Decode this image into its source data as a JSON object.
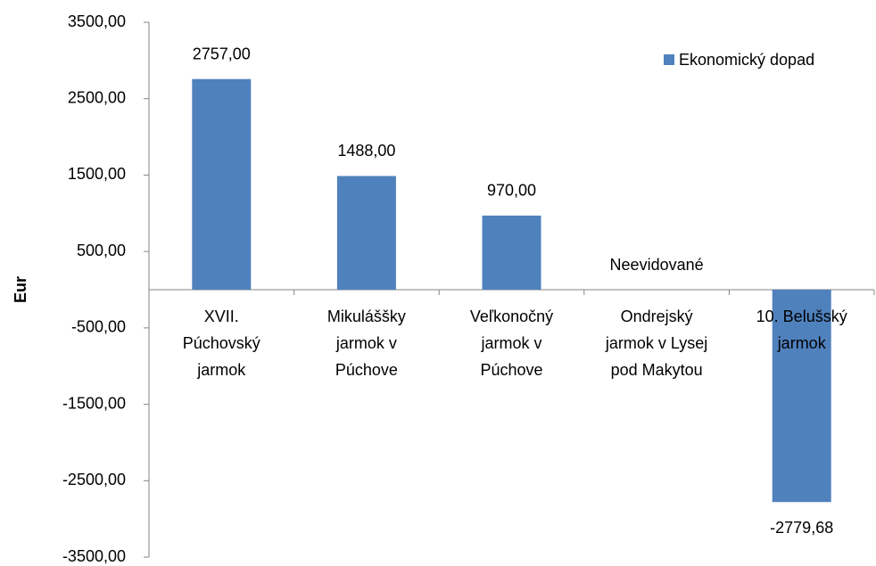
{
  "chart_data": {
    "type": "bar",
    "y_label": "Eur",
    "categories": [
      "XVII.\nPúchovský\njarmok",
      "Mikuláššky\njarmok v\nPúchove",
      "Veľkonočný\njarmok v\nPúchove",
      "Ondrejský\njarmok v Lysej\npod Makytou",
      "10. Belušský\njarmok"
    ],
    "series": [
      {
        "name": "Ekonomický dopad",
        "color": "#4f81bd",
        "values": [
          2757,
          1488,
          970,
          null,
          -2779.68
        ],
        "value_labels": [
          "2757,00",
          "1488,00",
          "970,00",
          "Neevidované",
          "-2779,68"
        ]
      }
    ],
    "ylim": [
      -3500,
      3500
    ],
    "yticks": [
      {
        "value": -3500,
        "label": "-3500,00"
      },
      {
        "value": -2500,
        "label": "-2500,00"
      },
      {
        "value": -1500,
        "label": "-1500,00"
      },
      {
        "value": -500,
        "label": "-500,00"
      },
      {
        "value": 500,
        "label": "500,00"
      },
      {
        "value": 1500,
        "label": "1500,00"
      },
      {
        "value": 2500,
        "label": "2500,00"
      },
      {
        "value": 3500,
        "label": "3500,00"
      }
    ],
    "legend": "top-right",
    "grid": false
  }
}
